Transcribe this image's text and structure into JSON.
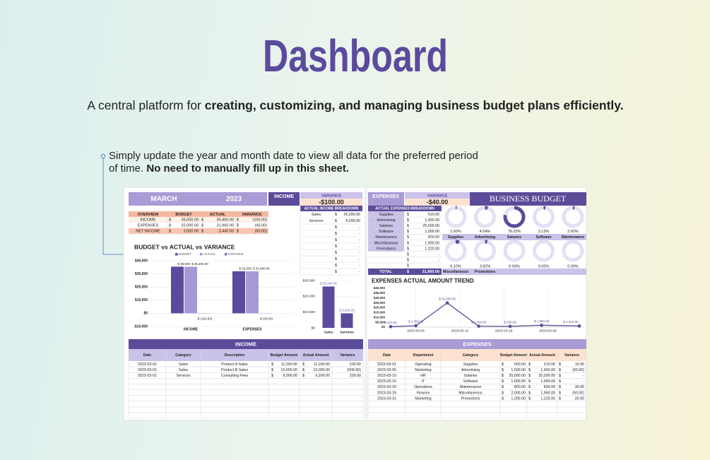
{
  "header": {
    "title": "Dashboard",
    "subtitle_plain": "A central platform for ",
    "subtitle_bold": "creating, customizing, and managing business budget plans efficiently.",
    "note_line1": "Simply update the year and month date to view all data for the preferred period",
    "note_line2_plain": "of time. ",
    "note_line2_bold": "No need to manually fill up in this sheet."
  },
  "sheet": {
    "month": "MARCH",
    "year": "2023",
    "income_label": "INCOME",
    "income_variance_label": "VARIANCE",
    "income_variance": "-$100.00",
    "expenses_label": "EXPENSES",
    "expenses_variance_label": "VARIANCE",
    "expenses_variance": "-$40.00",
    "brand": "BUSINESS BUDGET",
    "overview": {
      "columns": [
        "OVERVIEW",
        "BUDGET",
        "ACTUAL",
        "VARIANCE"
      ],
      "rows": [
        [
          "INCOME",
          "$",
          "35,500.00",
          "$",
          "35,400.00",
          "$",
          "(100.00)"
        ],
        [
          "EXPENSES",
          "$",
          "32,000.00",
          "$",
          "31,960.00",
          "$",
          "(40.00)"
        ],
        [
          "NET INCOME",
          "$",
          "3,500.00",
          "$",
          "3,440.00",
          "$",
          "(60.00)"
        ]
      ]
    },
    "income_breakdown": {
      "title": "ACTUAL INCOME BREAKDOWN",
      "rows": [
        [
          "Sales",
          "$",
          "26,200.00"
        ],
        [
          "Services",
          "$",
          "9,200.00"
        ],
        [
          null,
          "$",
          "-"
        ],
        [
          null,
          "$",
          "-"
        ],
        [
          null,
          "$",
          "-"
        ],
        [
          null,
          "$",
          "-"
        ],
        [
          null,
          "$",
          "-"
        ],
        [
          null,
          "$",
          "-"
        ],
        [
          null,
          "$",
          "-"
        ],
        [
          null,
          "$",
          "-"
        ]
      ]
    },
    "expense_breakdown": {
      "title": "ACTUAL EXPENSES BREAKDOWN",
      "rows": [
        [
          "Supplies",
          "$",
          "510.00"
        ],
        [
          "Advertising",
          "$",
          "1,450.00"
        ],
        [
          "Salaries",
          "$",
          "25,000.00"
        ],
        [
          "Software",
          "$",
          "1,000.00"
        ],
        [
          "Maintenance",
          "$",
          "830.00"
        ],
        [
          "Miscellaneous",
          "$",
          "1,950.00"
        ],
        [
          "Promotions",
          "$",
          "1,220.00"
        ],
        [
          null,
          "$",
          "-"
        ],
        [
          null,
          "$",
          "-"
        ],
        [
          null,
          "$",
          "-"
        ]
      ],
      "total": [
        "TOTAL",
        "$",
        "31,960.00"
      ]
    },
    "expense_share": {
      "values": [
        1.6,
        4.54,
        78.22,
        3.13,
        2.6,
        6.1,
        3.82,
        0,
        0,
        0
      ],
      "value_labels": [
        "1.60%",
        "4.54%",
        "78.22%",
        "3.13%",
        "2.60%",
        "6.10%",
        "3.82%",
        "0.00%",
        "0.00%",
        "0.00%"
      ],
      "labels": [
        "Supplies",
        "Advertising",
        "Salaries",
        "Software",
        "Maintenance",
        "Miscellaneous",
        "Promotions",
        null,
        null,
        null
      ],
      "color": "#5c4b99"
    },
    "budget_chart": {
      "type": "bar",
      "title": "BUDGET vs ACTUAL vs VARIANCE",
      "categories": [
        "INCOME",
        "EXPENSES"
      ],
      "series": [
        {
          "name": "BUDGET",
          "color": "#5b4a9d",
          "values": [
            35500,
            32000
          ],
          "value_labels": [
            "$ 35,500",
            "$ 32,000"
          ]
        },
        {
          "name": "ACTUAL",
          "color": "#a799d6",
          "values": [
            35400,
            31960
          ],
          "value_labels": [
            "$ 35,400.00",
            "$ 31,960.00"
          ]
        },
        {
          "name": "VARIANCE",
          "color": "#7f6fc0",
          "values": [
            -100,
            -40
          ],
          "value_labels": [
            "$ (100.00)",
            "$ (40.00)"
          ]
        }
      ],
      "ylim": [
        -10000,
        40000
      ],
      "yticks": [
        {
          "value": -10000,
          "label": "-$10,000"
        },
        {
          "value": 0,
          "label": "$0"
        },
        {
          "value": 10000,
          "label": "$10,000"
        },
        {
          "value": 20000,
          "label": "$20,000"
        },
        {
          "value": 30000,
          "label": "$30,000"
        },
        {
          "value": 40000,
          "label": "$40,000"
        }
      ],
      "grid": true
    },
    "income_chart": {
      "type": "bar",
      "categories": [
        "Sales",
        "Services"
      ],
      "values": [
        26200,
        9200
      ],
      "value_labels": [
        "$ 26,200.00",
        "$ 9,200.00"
      ],
      "color": "#5b4a9d",
      "ylim": [
        0,
        30000
      ],
      "yticks": [
        {
          "value": 0,
          "label": "$0"
        },
        {
          "value": 10000,
          "label": "$10,000"
        },
        {
          "value": 20000,
          "label": "$20,000"
        },
        {
          "value": 30000,
          "label": "$30,000"
        }
      ]
    },
    "trend_chart": {
      "type": "line",
      "title": "EXPENSES ACTUAL AMOUNT TREND",
      "x": [
        "2023-03-01",
        "2023-03-05",
        "2023-03-10",
        "2023-03-15",
        "2023-03-20",
        "2023-03-25",
        "2023-03-31"
      ],
      "values": [
        510,
        1450,
        25000,
        1000,
        830,
        1950,
        1220
      ],
      "value_labels": [
        "$ 510.00",
        "$ 1,450.00",
        "$ 25,000.00",
        "$ 1,000.00",
        "$ 830.00",
        "$ 1,950.00",
        "$ 1,220.00"
      ],
      "color": "#5c4b99",
      "xlim": [
        "2023-03-01",
        "2023-03-31"
      ],
      "xticks": [
        "2023-03-05",
        "2023-03-12",
        "2023-03-19",
        "2023-03-26"
      ],
      "ylim": [
        0,
        40000
      ],
      "yticks": [
        {
          "value": 0,
          "label": "$0"
        },
        {
          "value": 5000,
          "label": "$5,000"
        },
        {
          "value": 10000,
          "label": "$10,000"
        },
        {
          "value": 15000,
          "label": "$15,000"
        },
        {
          "value": 20000,
          "label": "$20,000"
        },
        {
          "value": 25000,
          "label": "$25,000"
        },
        {
          "value": 30000,
          "label": "$30,000"
        },
        {
          "value": 35000,
          "label": "$35,000"
        },
        {
          "value": 40000,
          "label": "$40,000"
        }
      ]
    },
    "income_table": {
      "title": "INCOME",
      "columns": [
        "Date",
        "Category",
        "Description",
        "Budget Amount",
        "Actual Amount",
        "Variance"
      ],
      "rows": [
        [
          "2023-03-01",
          "Sales",
          "Product A Sales",
          "$",
          "11,000.00",
          "$",
          "11,200.00",
          "200.00"
        ],
        [
          "2023-03-01",
          "Sales",
          "Product B Sales",
          "$",
          "15,500.00",
          "$",
          "15,000.00",
          "(500.00)"
        ],
        [
          "2023-03-01",
          "Services",
          "Consulting Fees",
          "$",
          "9,000.00",
          "$",
          "9,200.00",
          "200.00"
        ]
      ]
    },
    "expense_table": {
      "title": "EXPENSES",
      "columns": [
        "Date",
        "Department",
        "Category",
        "Budget Amount",
        "Actual Amount",
        "Variance"
      ],
      "rows": [
        [
          "2023-03-01",
          "Operating",
          "Supplies",
          "$",
          "500.00",
          "$",
          "510.00",
          "$",
          "10.00"
        ],
        [
          "2023-03-05",
          "Marketing",
          "Advertising",
          "$",
          "1,500.00",
          "$",
          "1,450.00",
          "$",
          "(50.00)"
        ],
        [
          "2023-03-10",
          "HR",
          "Salaries",
          "$",
          "25,000.00",
          "$",
          "25,000.00",
          "$",
          "-"
        ],
        [
          "2023-03-15",
          "IT",
          "Software",
          "$",
          "1,000.00",
          "$",
          "1,000.00",
          "$",
          "-"
        ],
        [
          "2023-03-20",
          "Operations",
          "Maintenance",
          "$",
          "800.00",
          "$",
          "830.00",
          "$",
          "30.00"
        ],
        [
          "2023-03-25",
          "Finance",
          "Miscellaneous",
          "$",
          "2,000.00",
          "$",
          "1,950.00",
          "$",
          "(50.00)"
        ],
        [
          "2023-03-31",
          "Marketing",
          "Promotions",
          "$",
          "1,200.00",
          "$",
          "1,220.00",
          "$",
          "20.00"
        ]
      ]
    }
  }
}
